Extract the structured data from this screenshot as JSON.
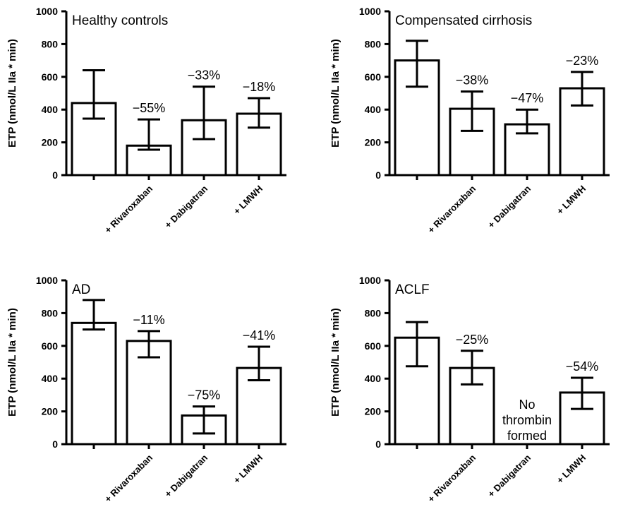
{
  "chart_data": [
    {
      "type": "bar",
      "title": "Healthy controls",
      "ylabel": "ETP (nmol/L IIa * min)",
      "ylim": [
        0,
        1000
      ],
      "yticks": [
        "0",
        "200",
        "400",
        "600",
        "800",
        "1000"
      ],
      "categories": [
        "",
        "+ Rivaroxaban",
        "+ Dabigatran",
        "+ LMWH"
      ],
      "values": [
        440,
        180,
        335,
        375
      ],
      "error_low": [
        345,
        155,
        220,
        290
      ],
      "error_high": [
        640,
        340,
        540,
        470
      ],
      "labels": [
        "",
        "−55%",
        "−33%",
        "−18%"
      ],
      "note": ""
    },
    {
      "type": "bar",
      "title": "Compensated cirrhosis",
      "ylabel": "ETP (nmol/L IIa * min)",
      "ylim": [
        0,
        1000
      ],
      "yticks": [
        "0",
        "200",
        "400",
        "600",
        "800",
        "1000"
      ],
      "categories": [
        "",
        "+ Rivaroxaban",
        "+ Dabigatran",
        "+ LMWH"
      ],
      "values": [
        700,
        405,
        310,
        530
      ],
      "error_low": [
        540,
        270,
        255,
        425
      ],
      "error_high": [
        820,
        510,
        400,
        630
      ],
      "labels": [
        "",
        "−38%",
        "−47%",
        "−23%"
      ],
      "note": ""
    },
    {
      "type": "bar",
      "title": "AD",
      "ylabel": "ETP (nmol/L IIa * min)",
      "ylim": [
        0,
        1000
      ],
      "yticks": [
        "0",
        "200",
        "400",
        "600",
        "800",
        "1000"
      ],
      "categories": [
        "",
        "+ Rivaroxaban",
        "+ Dabigatran",
        "+ LMWH"
      ],
      "values": [
        740,
        630,
        175,
        465
      ],
      "error_low": [
        700,
        530,
        65,
        390
      ],
      "error_high": [
        880,
        690,
        230,
        595
      ],
      "labels": [
        "",
        "−11%",
        "−75%",
        "−41%"
      ],
      "note": ""
    },
    {
      "type": "bar",
      "title": "ACLF",
      "ylabel": "ETP (nmol/L IIa * min)",
      "ylim": [
        0,
        1000
      ],
      "yticks": [
        "0",
        "200",
        "400",
        "600",
        "800",
        "1000"
      ],
      "categories": [
        "",
        "+ Rivaroxaban",
        "+ Dabigatran",
        "+ LMWH"
      ],
      "values": [
        650,
        465,
        null,
        315
      ],
      "error_low": [
        475,
        365,
        null,
        215
      ],
      "error_high": [
        745,
        570,
        null,
        405
      ],
      "labels": [
        "",
        "−25%",
        "",
        "−54%"
      ],
      "note": [
        "No",
        "thrombin",
        "formed"
      ]
    }
  ]
}
